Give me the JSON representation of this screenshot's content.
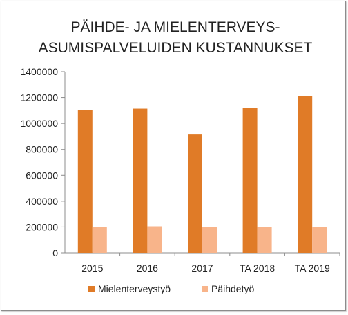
{
  "chart_data": {
    "type": "bar",
    "title_lines": [
      "PÄIHDE- JA MIELENTERVEYS-",
      "ASUMISPALVELUIDEN  KUSTANNUKSET"
    ],
    "categories": [
      "2015",
      "2016",
      "2017",
      "TA 2018",
      "TA 2019"
    ],
    "series": [
      {
        "name": "Mielenterveystyö",
        "color": "#E07B27",
        "values": [
          1105000,
          1115000,
          915000,
          1120000,
          1210000
        ]
      },
      {
        "name": "Päihdetyö",
        "color": "#F8B48A",
        "values": [
          200000,
          205000,
          200000,
          200000,
          200000
        ]
      }
    ],
    "y_ticks": [
      "0",
      "200000",
      "400000",
      "600000",
      "800000",
      "1000000",
      "1200000",
      "1400000"
    ],
    "ylim": [
      0,
      1400000
    ],
    "grid": false,
    "legend_position": "bottom"
  }
}
